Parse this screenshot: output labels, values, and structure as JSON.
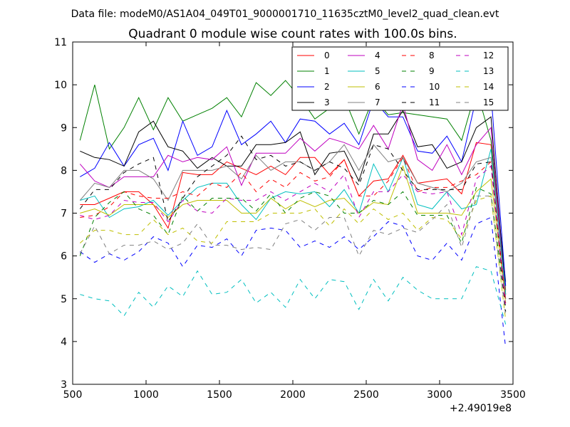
{
  "suptitle": "Data file: modeM0/AS1A04_049T01_9000001710_11635cztM0_level2_quad_clean.evt",
  "chart_data": {
    "type": "line",
    "title": "Quadrant 0 module wise count rates with 100.0s bins.",
    "xlabel": "",
    "ylabel": "",
    "x_offset_label": "+2.49019e8",
    "xlim": [
      500,
      3500
    ],
    "ylim": [
      3,
      11
    ],
    "xticks": [
      500,
      1000,
      1500,
      2000,
      2500,
      3000,
      3500
    ],
    "yticks": [
      3,
      4,
      5,
      6,
      7,
      8,
      9,
      10,
      11
    ],
    "grid": false,
    "legend_position": "top-right",
    "legend_columns": 4,
    "x": [
      550,
      650,
      750,
      850,
      950,
      1050,
      1150,
      1250,
      1350,
      1450,
      1550,
      1650,
      1750,
      1850,
      1950,
      2050,
      2150,
      2250,
      2350,
      2450,
      2550,
      2650,
      2750,
      2850,
      2950,
      3050,
      3150,
      3250,
      3350,
      3450
    ],
    "series": [
      {
        "name": "0",
        "color": "#ff0000",
        "dash": "solid",
        "values": [
          7.2,
          7.2,
          7.35,
          7.5,
          7.5,
          7.2,
          6.65,
          7.95,
          7.9,
          7.9,
          8.2,
          8.05,
          7.9,
          8.1,
          7.9,
          8.3,
          8.3,
          7.9,
          8.25,
          7.4,
          7.75,
          7.8,
          8.35,
          7.7,
          7.75,
          7.8,
          7.45,
          8.65,
          8.6,
          5.2
        ]
      },
      {
        "name": "1",
        "color": "#008000",
        "dash": "solid",
        "values": [
          8.7,
          10.0,
          8.5,
          9.0,
          9.7,
          8.95,
          9.7,
          9.15,
          9.3,
          9.45,
          9.7,
          9.25,
          10.05,
          9.75,
          10.1,
          9.7,
          9.2,
          9.45,
          9.7,
          8.85,
          9.7,
          9.3,
          9.35,
          9.3,
          9.25,
          9.2,
          8.7,
          9.9,
          8.7,
          5.4
        ]
      },
      {
        "name": "2",
        "color": "#0000ff",
        "dash": "solid",
        "values": [
          7.85,
          8.05,
          8.65,
          8.1,
          8.6,
          8.75,
          8.0,
          9.15,
          8.35,
          8.55,
          9.4,
          8.6,
          8.85,
          9.15,
          8.65,
          9.2,
          9.15,
          8.85,
          9.1,
          8.6,
          9.65,
          9.25,
          9.25,
          8.45,
          8.4,
          8.8,
          8.2,
          9.7,
          9.8,
          5.3
        ]
      },
      {
        "name": "3",
        "color": "#000000",
        "dash": "solid",
        "values": [
          8.45,
          8.3,
          8.25,
          8.1,
          8.9,
          9.15,
          8.55,
          8.45,
          8.05,
          8.3,
          8.1,
          8.1,
          8.6,
          8.6,
          8.65,
          8.9,
          7.9,
          8.4,
          8.45,
          7.75,
          8.85,
          8.85,
          9.4,
          8.55,
          8.6,
          8.05,
          8.2,
          9.0,
          9.25,
          5.1
        ]
      },
      {
        "name": "4",
        "color": "#bf00bf",
        "dash": "solid",
        "values": [
          8.15,
          7.75,
          7.6,
          7.85,
          7.85,
          7.85,
          8.35,
          8.2,
          8.3,
          8.25,
          8.55,
          7.65,
          8.4,
          8.4,
          8.4,
          8.75,
          8.45,
          8.75,
          8.65,
          8.5,
          9.05,
          8.5,
          9.55,
          8.25,
          8.0,
          8.6,
          7.9,
          8.6,
          9.0,
          5.0
        ]
      },
      {
        "name": "5",
        "color": "#00bfbf",
        "dash": "solid",
        "values": [
          7.3,
          7.4,
          6.9,
          7.1,
          7.15,
          7.3,
          6.95,
          7.3,
          7.6,
          7.7,
          7.7,
          7.2,
          6.85,
          7.35,
          7.5,
          7.45,
          7.5,
          7.15,
          7.55,
          7.0,
          8.15,
          7.5,
          8.3,
          7.2,
          7.1,
          7.5,
          7.1,
          7.2,
          8.5,
          5.1
        ]
      },
      {
        "name": "6",
        "color": "#bfbf00",
        "dash": "solid",
        "values": [
          7.0,
          7.1,
          6.95,
          7.2,
          7.2,
          7.2,
          6.9,
          7.2,
          7.3,
          7.3,
          7.3,
          7.0,
          7.0,
          7.35,
          7.1,
          7.3,
          7.15,
          7.3,
          7.35,
          7.0,
          7.25,
          7.2,
          8.1,
          7.0,
          7.0,
          7.0,
          6.95,
          7.5,
          7.8,
          4.9
        ]
      },
      {
        "name": "7",
        "color": "#808080",
        "dash": "solid",
        "values": [
          7.3,
          7.7,
          7.6,
          8.0,
          8.0,
          7.8,
          7.3,
          8.0,
          8.0,
          8.0,
          8.1,
          7.8,
          8.35,
          8.0,
          8.2,
          8.2,
          8.0,
          8.2,
          8.6,
          8.0,
          8.6,
          8.2,
          8.3,
          7.7,
          7.6,
          7.5,
          7.7,
          8.2,
          8.3,
          5.0
        ]
      },
      {
        "name": "8",
        "color": "#ff0000",
        "dash": "dashed",
        "values": [
          6.9,
          6.95,
          7.15,
          7.5,
          7.4,
          7.35,
          7.35,
          7.5,
          7.4,
          7.7,
          7.6,
          7.95,
          7.5,
          7.8,
          7.6,
          7.95,
          7.75,
          7.85,
          8.25,
          7.4,
          7.4,
          7.75,
          8.3,
          7.5,
          7.6,
          7.6,
          7.75,
          7.9,
          8.2,
          4.9
        ]
      },
      {
        "name": "9",
        "color": "#008000",
        "dash": "dashed",
        "values": [
          6.0,
          6.9,
          7.25,
          7.5,
          7.1,
          6.95,
          6.5,
          7.4,
          7.05,
          7.35,
          7.35,
          7.35,
          7.05,
          7.45,
          7.0,
          7.35,
          7.5,
          7.4,
          7.0,
          7.0,
          7.3,
          7.2,
          7.5,
          6.95,
          6.95,
          6.95,
          6.3,
          7.6,
          7.45,
          4.8
        ]
      },
      {
        "name": "10",
        "color": "#0000ff",
        "dash": "dashed",
        "values": [
          6.1,
          5.85,
          6.05,
          5.9,
          6.1,
          6.45,
          6.3,
          5.75,
          6.25,
          6.2,
          6.4,
          6.0,
          6.6,
          6.65,
          6.6,
          6.2,
          6.35,
          6.2,
          6.45,
          6.15,
          6.45,
          6.8,
          6.7,
          6.0,
          5.9,
          6.3,
          5.9,
          6.75,
          6.9,
          3.85
        ]
      },
      {
        "name": "11",
        "color": "#000000",
        "dash": "dashed",
        "values": [
          7.1,
          7.55,
          7.55,
          7.95,
          8.15,
          8.3,
          6.8,
          7.35,
          7.85,
          8.1,
          8.35,
          8.8,
          8.25,
          8.35,
          8.1,
          8.2,
          8.0,
          8.2,
          8.05,
          7.65,
          8.6,
          8.5,
          8.0,
          7.55,
          7.55,
          7.55,
          7.55,
          8.15,
          8.2,
          4.7
        ]
      },
      {
        "name": "12",
        "color": "#bf00bf",
        "dash": "dashed",
        "values": [
          6.95,
          6.85,
          6.95,
          7.3,
          7.25,
          7.25,
          6.8,
          7.3,
          7.05,
          7.0,
          7.35,
          7.3,
          7.3,
          7.5,
          7.3,
          7.5,
          7.7,
          7.5,
          7.9,
          6.9,
          7.5,
          7.5,
          7.9,
          7.5,
          7.45,
          7.5,
          6.5,
          7.8,
          8.1,
          4.8
        ]
      },
      {
        "name": "13",
        "color": "#00bfbf",
        "dash": "dashed",
        "values": [
          5.1,
          5.0,
          4.95,
          4.6,
          5.15,
          4.8,
          5.3,
          5.05,
          5.65,
          5.1,
          5.15,
          5.45,
          4.9,
          5.15,
          4.8,
          5.45,
          5.0,
          5.45,
          5.4,
          4.75,
          5.45,
          4.95,
          5.5,
          5.2,
          5.0,
          5.0,
          5.0,
          5.75,
          5.65,
          4.4
        ]
      },
      {
        "name": "14",
        "color": "#bfbf00",
        "dash": "dashed",
        "values": [
          6.3,
          6.6,
          6.6,
          6.5,
          6.5,
          6.85,
          6.5,
          6.65,
          6.35,
          6.3,
          6.8,
          6.8,
          6.8,
          7.0,
          7.0,
          7.0,
          7.1,
          6.7,
          7.1,
          6.75,
          7.1,
          6.85,
          7.0,
          6.6,
          6.9,
          6.85,
          6.4,
          7.3,
          7.4,
          4.5
        ]
      },
      {
        "name": "15",
        "color": "#808080",
        "dash": "dashed",
        "values": [
          6.05,
          6.7,
          6.05,
          6.25,
          6.25,
          6.35,
          6.15,
          6.3,
          6.75,
          6.25,
          6.25,
          6.15,
          6.2,
          6.15,
          6.75,
          6.85,
          6.6,
          6.9,
          6.9,
          6.0,
          6.6,
          6.5,
          6.65,
          6.55,
          6.85,
          7.2,
          6.2,
          7.4,
          7.4,
          4.6
        ]
      }
    ]
  }
}
